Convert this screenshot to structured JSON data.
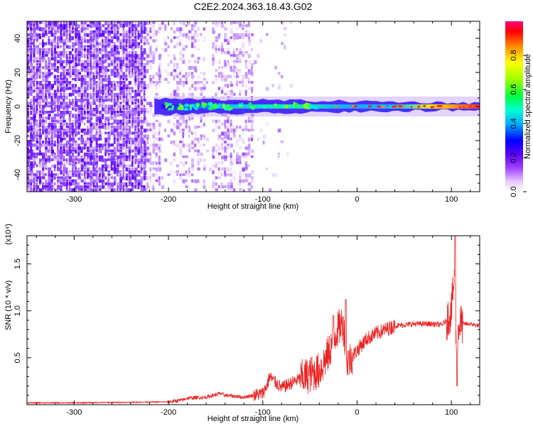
{
  "title": "C2E2.2024.363.18.43.G02",
  "chart_data": [
    {
      "type": "heatmap",
      "xlabel": "Height of straight line (km)",
      "ylabel": "Frequency (Hz)",
      "xlim": [
        -350,
        130
      ],
      "ylim": [
        -50,
        50
      ],
      "xticks": [
        -300,
        -200,
        -100,
        0,
        100
      ],
      "yticks": [
        -40,
        -20,
        0,
        20,
        40
      ],
      "colorbar": {
        "label": "Normalized spectral amplitude",
        "range": [
          0,
          1
        ],
        "ticks": [
          0.0,
          0.2,
          0.4,
          0.6,
          0.8
        ]
      },
      "ridge": {
        "frequency_hz": 0,
        "x_start": -215,
        "x_end": 130
      },
      "grid": false
    },
    {
      "type": "line",
      "xlabel": "Height of straight line (km)",
      "ylabel": "SNR (10 * v/v)",
      "yexponent": "(x10⁴)",
      "xlim": [
        -350,
        130
      ],
      "ylim": [
        0,
        1.8
      ],
      "xticks": [
        -300,
        -200,
        -100,
        0,
        100
      ],
      "yticks": [
        0.5,
        1.0,
        1.5
      ],
      "series": [
        {
          "color": "#ee2222",
          "x": [
            -350,
            -300,
            -250,
            -200,
            -185,
            -180,
            -160,
            -145,
            -140,
            -120,
            -100,
            -95,
            -93,
            -80,
            -60,
            -40,
            -30,
            -22,
            -15,
            -10,
            -5,
            0,
            10,
            20,
            30,
            40,
            50,
            60,
            70,
            80,
            90,
            95,
            100,
            103,
            105,
            108,
            110,
            120,
            130
          ],
          "y": [
            0.02,
            0.02,
            0.025,
            0.03,
            0.05,
            0.07,
            0.08,
            0.12,
            0.1,
            0.08,
            0.12,
            0.22,
            0.3,
            0.18,
            0.28,
            0.36,
            0.55,
            0.78,
            0.88,
            0.45,
            0.52,
            0.58,
            0.7,
            0.76,
            0.8,
            0.84,
            0.85,
            0.86,
            0.86,
            0.86,
            0.85,
            0.9,
            1.0,
            1.35,
            0.6,
            0.85,
            0.86,
            0.86,
            0.84
          ]
        }
      ],
      "grid": false
    }
  ]
}
